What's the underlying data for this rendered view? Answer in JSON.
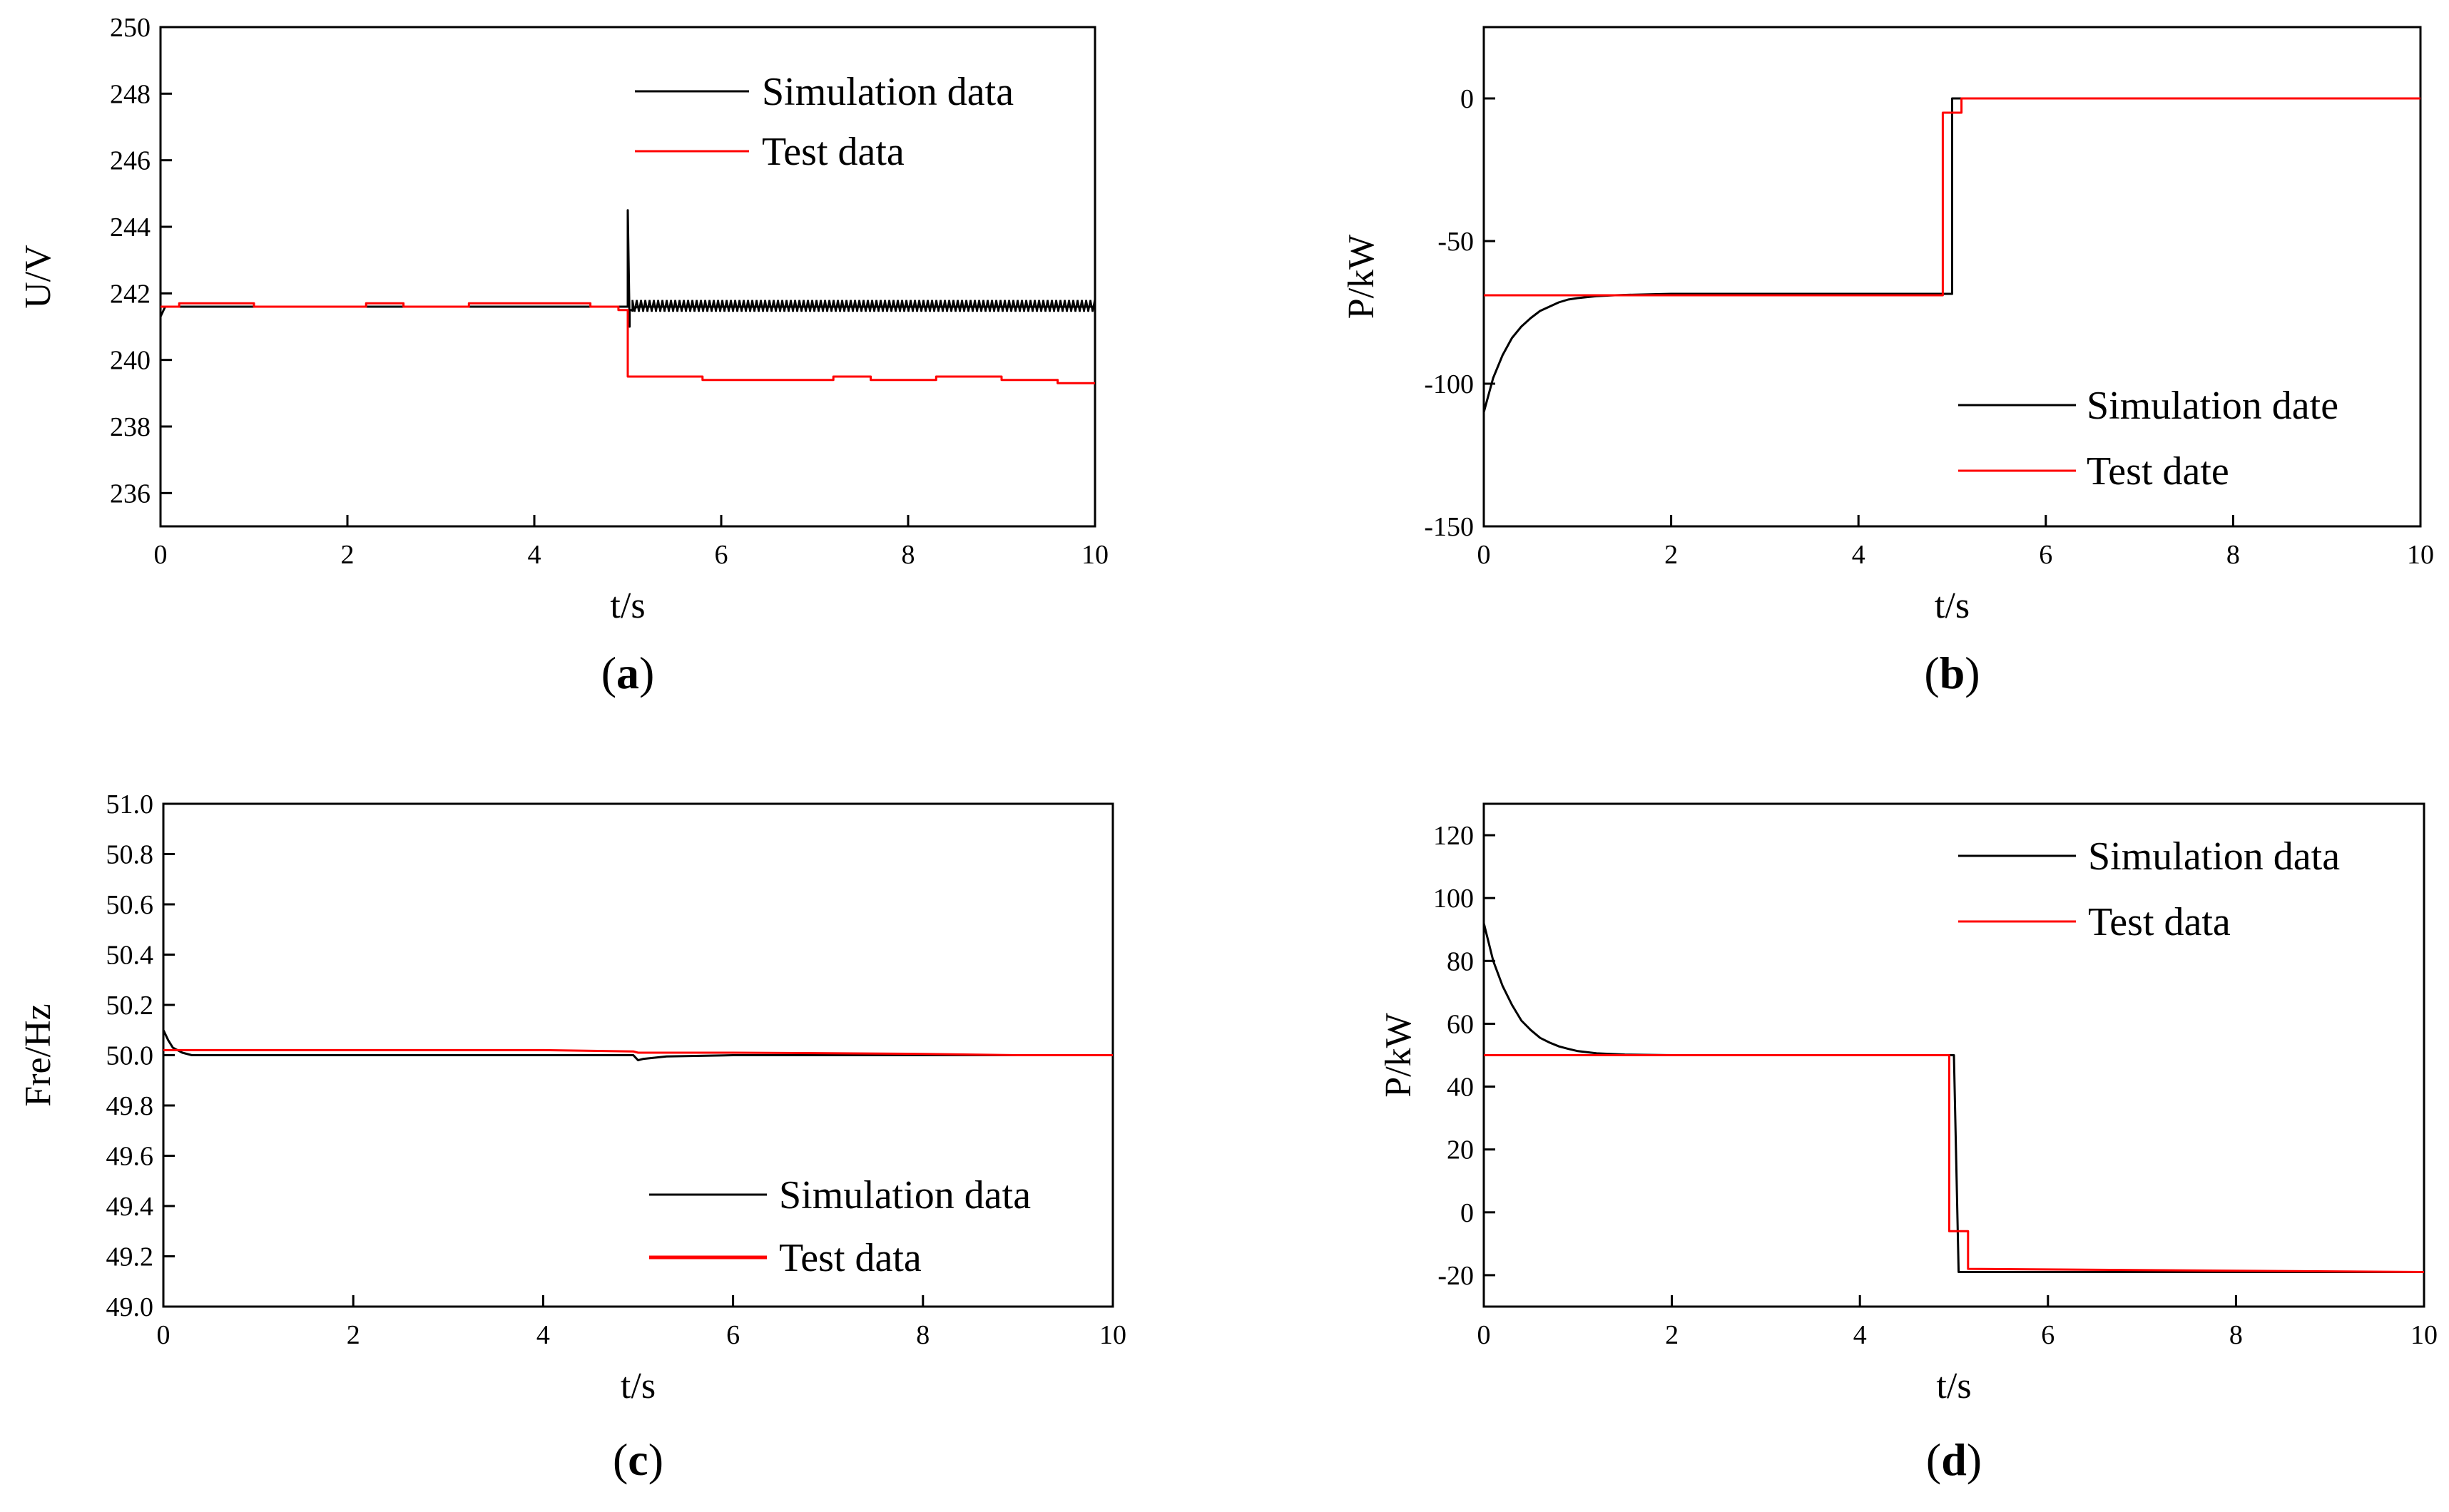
{
  "chart_data": [
    {
      "panel": "(a)",
      "panel_letter": "a",
      "type": "line",
      "xlabel": "t/s",
      "ylabel": "U/V",
      "xlim": [
        0,
        10
      ],
      "ylim": [
        235,
        250
      ],
      "xticks": [
        0,
        2,
        4,
        6,
        8,
        10
      ],
      "yticks": [
        236,
        238,
        240,
        242,
        244,
        246,
        248,
        250
      ],
      "legend_position": "top-right",
      "series": [
        {
          "name": "Simulation data",
          "color": "#000000",
          "x": [
            0,
            0.05,
            0.3,
            1,
            2,
            3,
            4,
            4.95,
            5.0,
            5.0,
            5.02,
            5.02,
            5.05,
            5.1,
            6,
            7,
            8,
            9,
            10
          ],
          "y": [
            241.3,
            241.6,
            241.6,
            241.6,
            241.6,
            241.6,
            241.6,
            241.6,
            241.6,
            244.5,
            241.0,
            241.5,
            241.5,
            241.6,
            241.6,
            241.6,
            241.6,
            241.6,
            241.6
          ],
          "band": {
            "x_start": 5.05,
            "x_end": 10,
            "y_low": 241.45,
            "y_high": 241.8
          }
        },
        {
          "name": "Test data",
          "color": "#ff0000",
          "x": [
            0,
            0.2,
            0.2,
            1.0,
            1.0,
            2.2,
            2.2,
            2.6,
            2.6,
            3.3,
            3.3,
            4.6,
            4.6,
            4.9,
            4.9,
            5.0,
            5.0,
            5.8,
            5.8,
            7.2,
            7.2,
            7.6,
            7.6,
            8.3,
            8.3,
            9.0,
            9.0,
            9.6,
            9.6,
            10
          ],
          "y": [
            241.6,
            241.6,
            241.7,
            241.7,
            241.6,
            241.6,
            241.7,
            241.7,
            241.6,
            241.6,
            241.7,
            241.7,
            241.6,
            241.6,
            241.5,
            241.5,
            239.5,
            239.5,
            239.4,
            239.4,
            239.5,
            239.5,
            239.4,
            239.4,
            239.5,
            239.5,
            239.4,
            239.4,
            239.3,
            239.3
          ]
        }
      ]
    },
    {
      "panel": "(b)",
      "panel_letter": "b",
      "type": "line",
      "xlabel": "t/s",
      "ylabel": "P/kW",
      "xlim": [
        0,
        10
      ],
      "ylim": [
        -150,
        25
      ],
      "xticks": [
        0,
        2,
        4,
        6,
        8,
        10
      ],
      "yticks": [
        -150,
        -100,
        -50,
        0
      ],
      "legend_position": "center-right",
      "series": [
        {
          "name": "Simulation date",
          "color": "#000000",
          "x": [
            0,
            0.1,
            0.2,
            0.3,
            0.4,
            0.5,
            0.6,
            0.7,
            0.8,
            0.9,
            1.0,
            1.2,
            1.4,
            1.6,
            2,
            3,
            4,
            5.0,
            5.0,
            10
          ],
          "y": [
            -110,
            -98,
            -90,
            -84,
            -80,
            -77,
            -74.5,
            -73,
            -71.5,
            -70.5,
            -70,
            -69.3,
            -69,
            -68.8,
            -68.5,
            -68.5,
            -68.5,
            -68.5,
            0,
            0
          ]
        },
        {
          "name": "Test date",
          "color": "#ff0000",
          "x": [
            0,
            4.9,
            4.9,
            4.95,
            4.95,
            5.1,
            5.1,
            10
          ],
          "y": [
            -69,
            -69,
            -5,
            -5,
            -5,
            -5,
            0,
            0
          ]
        }
      ]
    },
    {
      "panel": "(c)",
      "panel_letter": "c",
      "type": "line",
      "xlabel": "t/s",
      "ylabel": "Fre/Hz",
      "xlim": [
        0,
        10
      ],
      "ylim": [
        49.0,
        51.0
      ],
      "xticks": [
        0,
        2,
        4,
        6,
        8,
        10
      ],
      "yticks": [
        "49.0",
        "49.2",
        "49.4",
        "49.6",
        "49.8",
        "50.0",
        "50.2",
        "50.4",
        "50.6",
        "50.8",
        "51.0"
      ],
      "legend_position": "bottom-right",
      "series": [
        {
          "name": "Simulation data",
          "color": "#000000",
          "x": [
            0,
            0.05,
            0.1,
            0.2,
            0.3,
            0.5,
            1,
            2,
            3,
            4,
            4.95,
            5.0,
            5.05,
            5.3,
            6,
            7,
            8,
            9,
            10
          ],
          "y": [
            50.1,
            50.06,
            50.03,
            50.01,
            50.0,
            50.0,
            50.0,
            50.0,
            50.0,
            50.0,
            50.0,
            49.98,
            49.985,
            49.995,
            50.0,
            50.0,
            50.0,
            50.0,
            50.0
          ],
          "band": null
        },
        {
          "name": "Test data",
          "color": "#ff0000",
          "x": [
            0,
            1,
            2,
            3,
            4,
            4.95,
            5.0,
            6,
            7,
            8,
            9,
            10
          ],
          "y": [
            50.02,
            50.02,
            50.02,
            50.02,
            50.02,
            50.015,
            50.01,
            50.01,
            50.008,
            50.005,
            50.0,
            50.0
          ]
        }
      ]
    },
    {
      "panel": "(d)",
      "panel_letter": "d",
      "type": "line",
      "xlabel": "t/s",
      "ylabel": "P/kW",
      "xlim": [
        0,
        10
      ],
      "ylim": [
        -30,
        130
      ],
      "xticks": [
        0,
        2,
        4,
        6,
        8,
        10
      ],
      "yticks": [
        -20,
        0,
        20,
        40,
        60,
        80,
        100,
        120
      ],
      "legend_position": "top-right",
      "series": [
        {
          "name": "Simulation data",
          "color": "#000000",
          "x": [
            0,
            0.1,
            0.2,
            0.3,
            0.4,
            0.5,
            0.6,
            0.7,
            0.8,
            0.9,
            1.0,
            1.2,
            1.5,
            2,
            3,
            4,
            5.0,
            5.0,
            5.05,
            10
          ],
          "y": [
            92,
            80,
            72,
            66,
            61,
            58,
            55.5,
            54,
            52.8,
            52,
            51.3,
            50.6,
            50.2,
            50,
            50,
            50,
            50,
            50,
            -19,
            -19
          ],
          "band": null
        },
        {
          "name": "Test data",
          "color": "#ff0000",
          "x": [
            0,
            4.95,
            4.95,
            5.15,
            5.15,
            10
          ],
          "y": [
            50,
            50,
            -6,
            -6,
            -18,
            -19
          ]
        }
      ]
    }
  ]
}
